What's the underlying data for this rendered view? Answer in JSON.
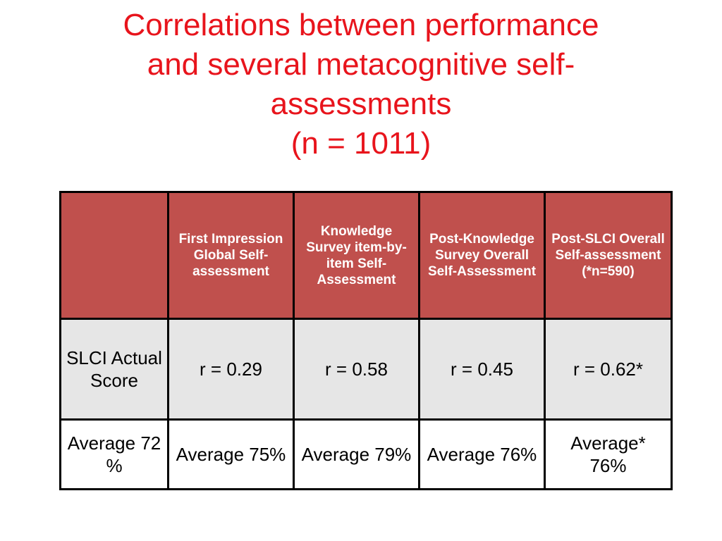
{
  "title": {
    "lines": [
      "Correlations between performance",
      "and several metacognitive self-",
      "assessments",
      "(n = 1011)"
    ]
  },
  "table": {
    "headers": [
      "",
      "First Impression Global Self-assessment",
      "Knowledge Survey item-by-item Self-Assessment",
      "Post-Knowledge Survey Overall Self-Assessment",
      "Post-SLCI Overall Self-assessment (*n=590)"
    ],
    "rows": [
      {
        "label": "SLCI Actual Score",
        "cells": [
          "r = 0.29",
          "r = 0.58",
          "r = 0.45",
          "r = 0.62*"
        ]
      },
      {
        "label": "Average 72 %",
        "cells": [
          "Average 75%",
          "Average 79%",
          "Average 76%",
          "Average* 76%"
        ]
      }
    ]
  },
  "colors": {
    "title": "#e8141c",
    "header_bg": "#c0504d",
    "header_text": "#ffffff",
    "row1_bg": "#e6e6e6",
    "row2_bg": "#ffffff",
    "border": "#000000"
  }
}
